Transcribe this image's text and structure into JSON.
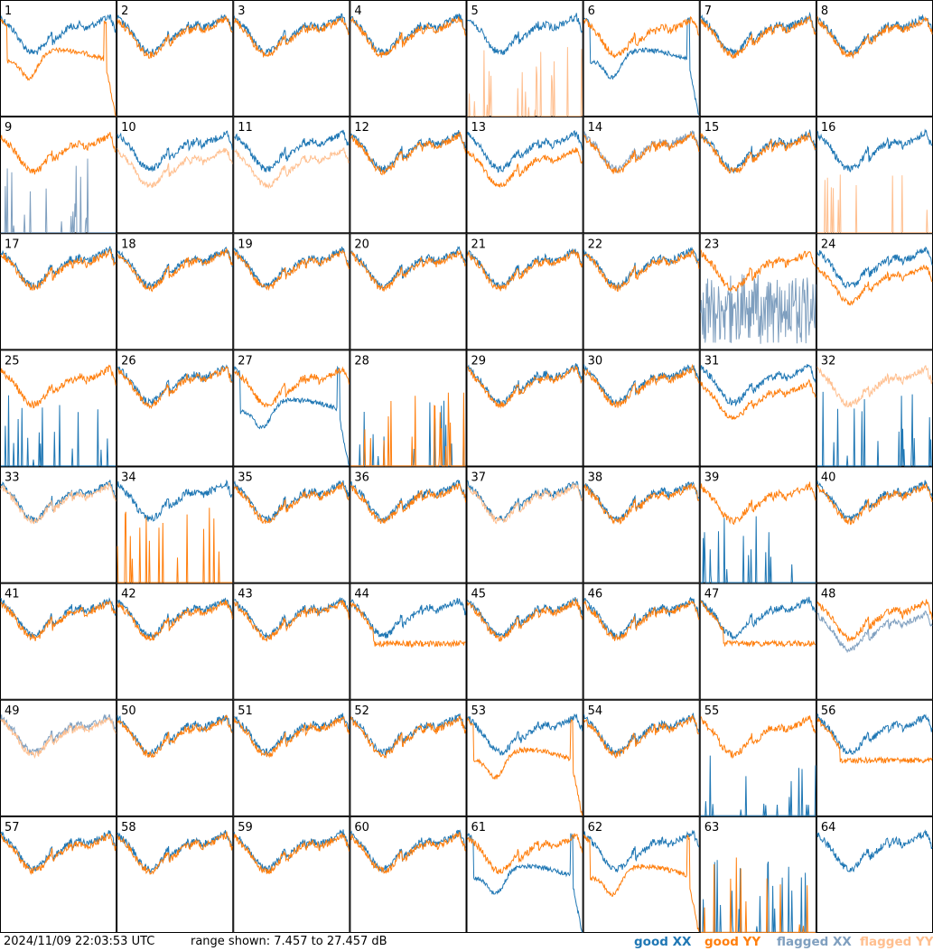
{
  "page": {
    "timestamp": "2024/11/09 22:03:53 UTC",
    "range_text": "range shown: 7.457 to 27.457 dB"
  },
  "legend": [
    {
      "word": "good",
      "pol": "XX",
      "color": "#1f77b4"
    },
    {
      "word": "good",
      "pol": "YY",
      "color": "#ff7f0e"
    },
    {
      "word": "flagged",
      "pol": "XX",
      "color": "#7f9fbf"
    },
    {
      "word": "flagged",
      "pol": "YY",
      "color": "#ffbf8f"
    }
  ],
  "chart_data": {
    "type": "line",
    "title": "",
    "xlabel": "",
    "ylabel": "",
    "ylim": [
      7.457,
      27.457
    ],
    "grid": "8x8 small multiples",
    "colors": {
      "good_xx": "#1f77b4",
      "good_yy": "#ff7f0e",
      "flagged_xx": "#7f9fbf",
      "flagged_yy": "#ffbf8f"
    },
    "panels": [
      {
        "label": "1",
        "xx": "good",
        "yy": "good",
        "xx_shape": "normal",
        "yy_shape": "rolloff"
      },
      {
        "label": "2",
        "xx": "good",
        "yy": "good",
        "xx_shape": "normal",
        "yy_shape": "normal"
      },
      {
        "label": "3",
        "xx": "good",
        "yy": "good",
        "xx_shape": "normal",
        "yy_shape": "normal"
      },
      {
        "label": "4",
        "xx": "good",
        "yy": "good",
        "xx_shape": "normal",
        "yy_shape": "normal"
      },
      {
        "label": "5",
        "xx": "good",
        "yy": "flagged",
        "xx_shape": "normal",
        "yy_shape": "spikes"
      },
      {
        "label": "6",
        "xx": "good",
        "yy": "good",
        "xx_shape": "rolloff",
        "yy_shape": "normal"
      },
      {
        "label": "7",
        "xx": "good",
        "yy": "good",
        "xx_shape": "normal",
        "yy_shape": "normal"
      },
      {
        "label": "8",
        "xx": "good",
        "yy": "good",
        "xx_shape": "normal",
        "yy_shape": "normal"
      },
      {
        "label": "9",
        "xx": "flagged",
        "yy": "good",
        "xx_shape": "spikes",
        "yy_shape": "normal"
      },
      {
        "label": "10",
        "xx": "good",
        "yy": "flagged",
        "xx_shape": "normal",
        "yy_shape": "low"
      },
      {
        "label": "11",
        "xx": "good",
        "yy": "flagged",
        "xx_shape": "normal",
        "yy_shape": "low"
      },
      {
        "label": "12",
        "xx": "good",
        "yy": "good",
        "xx_shape": "normal",
        "yy_shape": "normal"
      },
      {
        "label": "13",
        "xx": "good",
        "yy": "good",
        "xx_shape": "normal",
        "yy_shape": "low"
      },
      {
        "label": "14",
        "xx": "flagged",
        "yy": "good",
        "xx_shape": "normal",
        "yy_shape": "normal"
      },
      {
        "label": "15",
        "xx": "good",
        "yy": "good",
        "xx_shape": "normal",
        "yy_shape": "normal"
      },
      {
        "label": "16",
        "xx": "good",
        "yy": "flagged",
        "xx_shape": "normal",
        "yy_shape": "spikes"
      },
      {
        "label": "17",
        "xx": "good",
        "yy": "good",
        "xx_shape": "normal",
        "yy_shape": "normal"
      },
      {
        "label": "18",
        "xx": "good",
        "yy": "good",
        "xx_shape": "normal",
        "yy_shape": "normal"
      },
      {
        "label": "19",
        "xx": "good",
        "yy": "good",
        "xx_shape": "normal",
        "yy_shape": "normal"
      },
      {
        "label": "20",
        "xx": "good",
        "yy": "good",
        "xx_shape": "normal",
        "yy_shape": "normal"
      },
      {
        "label": "21",
        "xx": "good",
        "yy": "good",
        "xx_shape": "normal",
        "yy_shape": "normal"
      },
      {
        "label": "22",
        "xx": "good",
        "yy": "good",
        "xx_shape": "normal",
        "yy_shape": "normal"
      },
      {
        "label": "23",
        "xx": "flagged",
        "yy": "good",
        "xx_shape": "noisy",
        "yy_shape": "normal"
      },
      {
        "label": "24",
        "xx": "good",
        "yy": "good",
        "xx_shape": "normal",
        "yy_shape": "low"
      },
      {
        "label": "25",
        "xx": "good",
        "yy": "good",
        "xx_shape": "spikes",
        "yy_shape": "normal"
      },
      {
        "label": "26",
        "xx": "good",
        "yy": "good",
        "xx_shape": "normal",
        "yy_shape": "normal"
      },
      {
        "label": "27",
        "xx": "good",
        "yy": "good",
        "xx_shape": "rolloff",
        "yy_shape": "normal"
      },
      {
        "label": "28",
        "xx": "good",
        "yy": "good",
        "xx_shape": "spikes",
        "yy_shape": "spikes"
      },
      {
        "label": "29",
        "xx": "good",
        "yy": "good",
        "xx_shape": "normal",
        "yy_shape": "normal"
      },
      {
        "label": "30",
        "xx": "good",
        "yy": "good",
        "xx_shape": "normal",
        "yy_shape": "normal"
      },
      {
        "label": "31",
        "xx": "good",
        "yy": "good",
        "xx_shape": "normal",
        "yy_shape": "low"
      },
      {
        "label": "32",
        "xx": "good",
        "yy": "flagged",
        "xx_shape": "spikes",
        "yy_shape": "normal"
      },
      {
        "label": "33",
        "xx": "good",
        "yy": "flagged",
        "xx_shape": "normal",
        "yy_shape": "normal"
      },
      {
        "label": "34",
        "xx": "good",
        "yy": "good",
        "xx_shape": "normal",
        "yy_shape": "spikes"
      },
      {
        "label": "35",
        "xx": "good",
        "yy": "good",
        "xx_shape": "normal",
        "yy_shape": "normal"
      },
      {
        "label": "36",
        "xx": "good",
        "yy": "good",
        "xx_shape": "normal",
        "yy_shape": "normal"
      },
      {
        "label": "37",
        "xx": "good",
        "yy": "flagged",
        "xx_shape": "normal",
        "yy_shape": "normal"
      },
      {
        "label": "38",
        "xx": "good",
        "yy": "good",
        "xx_shape": "normal",
        "yy_shape": "normal"
      },
      {
        "label": "39",
        "xx": "good",
        "yy": "good",
        "xx_shape": "spikes",
        "yy_shape": "normal"
      },
      {
        "label": "40",
        "xx": "good",
        "yy": "good",
        "xx_shape": "normal",
        "yy_shape": "normal"
      },
      {
        "label": "41",
        "xx": "good",
        "yy": "good",
        "xx_shape": "normal",
        "yy_shape": "normal"
      },
      {
        "label": "42",
        "xx": "good",
        "yy": "good",
        "xx_shape": "normal",
        "yy_shape": "normal"
      },
      {
        "label": "43",
        "xx": "good",
        "yy": "good",
        "xx_shape": "normal",
        "yy_shape": "normal"
      },
      {
        "label": "44",
        "xx": "good",
        "yy": "good",
        "xx_shape": "normal",
        "yy_shape": "flat"
      },
      {
        "label": "45",
        "xx": "good",
        "yy": "good",
        "xx_shape": "normal",
        "yy_shape": "normal"
      },
      {
        "label": "46",
        "xx": "good",
        "yy": "good",
        "xx_shape": "normal",
        "yy_shape": "normal"
      },
      {
        "label": "47",
        "xx": "good",
        "yy": "good",
        "xx_shape": "normal",
        "yy_shape": "flat"
      },
      {
        "label": "48",
        "xx": "flagged",
        "yy": "good",
        "xx_shape": "low",
        "yy_shape": "normal"
      },
      {
        "label": "49",
        "xx": "flagged",
        "yy": "flagged",
        "xx_shape": "normal",
        "yy_shape": "normal"
      },
      {
        "label": "50",
        "xx": "good",
        "yy": "good",
        "xx_shape": "normal",
        "yy_shape": "normal"
      },
      {
        "label": "51",
        "xx": "good",
        "yy": "good",
        "xx_shape": "normal",
        "yy_shape": "normal"
      },
      {
        "label": "52",
        "xx": "good",
        "yy": "good",
        "xx_shape": "normal",
        "yy_shape": "normal"
      },
      {
        "label": "53",
        "xx": "good",
        "yy": "good",
        "xx_shape": "normal",
        "yy_shape": "rolloff"
      },
      {
        "label": "54",
        "xx": "good",
        "yy": "good",
        "xx_shape": "normal",
        "yy_shape": "normal"
      },
      {
        "label": "55",
        "xx": "good",
        "yy": "good",
        "xx_shape": "spikes",
        "yy_shape": "normal"
      },
      {
        "label": "56",
        "xx": "good",
        "yy": "good",
        "xx_shape": "normal",
        "yy_shape": "flat"
      },
      {
        "label": "57",
        "xx": "good",
        "yy": "good",
        "xx_shape": "normal",
        "yy_shape": "normal"
      },
      {
        "label": "58",
        "xx": "good",
        "yy": "good",
        "xx_shape": "normal",
        "yy_shape": "normal"
      },
      {
        "label": "59",
        "xx": "good",
        "yy": "good",
        "xx_shape": "normal",
        "yy_shape": "normal"
      },
      {
        "label": "60",
        "xx": "good",
        "yy": "good",
        "xx_shape": "normal",
        "yy_shape": "normal"
      },
      {
        "label": "61",
        "xx": "good",
        "yy": "good",
        "xx_shape": "rolloff",
        "yy_shape": "normal"
      },
      {
        "label": "62",
        "xx": "good",
        "yy": "good",
        "xx_shape": "normal",
        "yy_shape": "rolloff"
      },
      {
        "label": "63",
        "xx": "good",
        "yy": "good",
        "xx_shape": "spikes",
        "yy_shape": "spikes"
      },
      {
        "label": "64",
        "xx": "good",
        "yy": "good",
        "xx_shape": "normal",
        "yy_shape": "none"
      }
    ]
  }
}
